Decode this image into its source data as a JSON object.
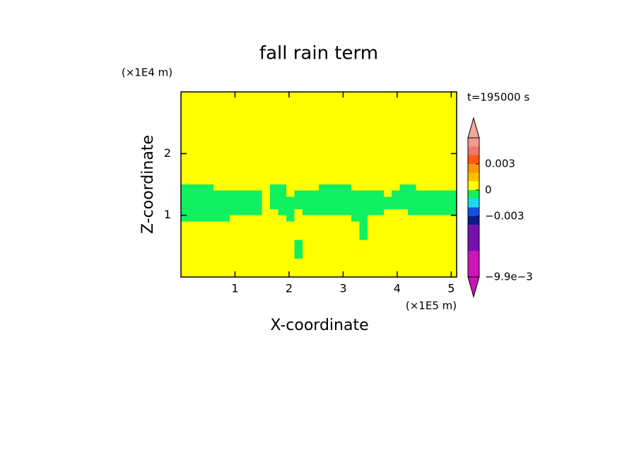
{
  "chart_data": {
    "type": "contour",
    "title": "fall rain term",
    "xlabel": "X-coordinate",
    "ylabel": "Z-coordinate",
    "xunit": "(×1E5 m)",
    "yunit": "(×1E4 m)",
    "annotation": "t=195000 s",
    "xlim": [
      0,
      5.1
    ],
    "ylim": [
      0,
      3
    ],
    "xticks": [
      1,
      2,
      3,
      4,
      5
    ],
    "yticks": [
      1,
      2
    ],
    "field": {
      "x_edges": [
        0,
        0.15,
        0.3,
        0.45,
        0.6,
        0.75,
        0.9,
        1.05,
        1.2,
        1.35,
        1.5,
        1.65,
        1.8,
        1.95,
        2.1,
        2.25,
        2.4,
        2.55,
        2.7,
        2.85,
        3,
        3.15,
        3.3,
        3.45,
        3.6,
        3.75,
        3.9,
        4.05,
        4.2,
        4.35,
        4.5,
        4.65,
        4.8,
        4.95,
        5.1
      ],
      "z_edges": [
        0,
        0.3,
        0.6,
        0.9,
        1,
        1.1,
        1.2,
        1.3,
        1.4,
        1.5,
        3
      ],
      "values": [
        [
          0,
          0,
          0,
          0,
          0,
          0,
          0,
          0,
          0,
          0,
          0,
          0,
          0,
          0,
          0,
          0,
          0,
          0,
          0,
          0,
          0,
          0,
          0,
          0,
          0,
          0,
          0,
          0,
          0,
          0,
          0,
          0,
          0,
          0
        ],
        [
          0,
          0,
          0,
          0,
          0,
          0,
          0,
          0,
          0,
          0,
          0,
          0,
          0,
          0,
          -0.0005,
          0,
          0,
          0,
          0,
          0,
          0,
          0,
          0,
          0,
          0,
          0,
          0,
          0,
          0,
          0,
          0,
          0,
          0,
          0
        ],
        [
          0,
          0,
          0,
          0,
          0,
          0,
          0,
          0,
          0,
          0,
          0,
          0,
          0,
          0,
          0,
          0,
          0,
          0,
          0,
          0,
          0,
          0,
          -0.0005,
          0,
          0,
          0,
          0,
          0,
          0,
          0,
          0,
          0,
          0,
          0
        ],
        [
          -0.0005,
          -0.0005,
          -0.0005,
          -0.0005,
          -0.0005,
          -0.0005,
          0,
          0,
          0,
          0,
          0,
          0,
          0,
          -0.0005,
          0,
          0,
          0,
          0,
          0,
          0,
          0,
          -0.0005,
          -0.0005,
          0,
          0,
          0,
          0,
          0,
          0,
          0,
          0,
          0,
          0,
          0
        ],
        [
          -0.0005,
          -0.0005,
          -0.0005,
          -0.0005,
          -0.0005,
          -0.0005,
          -0.0005,
          -0.0005,
          -0.0005,
          -0.0005,
          0,
          0,
          -0.0005,
          -0.0005,
          0,
          -0.0005,
          -0.0005,
          -0.0005,
          -0.0005,
          -0.0005,
          -0.0005,
          -0.0005,
          -0.0005,
          -0.0005,
          -0.0005,
          0,
          0,
          0,
          -0.0005,
          -0.0005,
          -0.0005,
          -0.0005,
          -0.0005,
          -0.0005
        ],
        [
          -0.0005,
          -0.0005,
          -0.0005,
          -0.0005,
          -0.0005,
          -0.0005,
          -0.0005,
          -0.0005,
          -0.0005,
          -0.0005,
          0,
          -0.0005,
          -0.0005,
          -0.0005,
          -0.0005,
          -0.0005,
          -0.0005,
          -0.0005,
          -0.0005,
          -0.0005,
          -0.0005,
          -0.0005,
          -0.0005,
          -0.0005,
          -0.0005,
          -0.0005,
          -0.0005,
          -0.0005,
          -0.0005,
          -0.0005,
          -0.0005,
          -0.0005,
          -0.0005,
          -0.0005
        ],
        [
          -0.0005,
          -0.0005,
          -0.0005,
          -0.0005,
          -0.0005,
          -0.0005,
          -0.0005,
          -0.0005,
          -0.0005,
          -0.0005,
          0,
          -0.0005,
          -0.0005,
          -0.0005,
          -0.0005,
          -0.0005,
          -0.0005,
          -0.0005,
          -0.0005,
          -0.0005,
          -0.0005,
          -0.0005,
          -0.0005,
          -0.0005,
          -0.0005,
          -0.0005,
          -0.0005,
          -0.0005,
          -0.0005,
          -0.0005,
          -0.0005,
          -0.0005,
          -0.0005,
          -0.0005
        ],
        [
          -0.0005,
          -0.0005,
          -0.0005,
          -0.0005,
          -0.0005,
          -0.0005,
          -0.0005,
          -0.0005,
          -0.0005,
          -0.0005,
          0,
          -0.0005,
          -0.0005,
          0,
          -0.0005,
          -0.0005,
          -0.0005,
          -0.0005,
          -0.0005,
          -0.0005,
          -0.0005,
          -0.0005,
          -0.0005,
          -0.0005,
          -0.0005,
          0,
          -0.0005,
          -0.0005,
          -0.0005,
          -0.0005,
          -0.0005,
          -0.0005,
          -0.0005,
          -0.0005
        ],
        [
          -0.0005,
          -0.0005,
          -0.0005,
          -0.0005,
          0,
          0,
          0,
          0,
          0,
          0,
          0,
          -0.0005,
          -0.0005,
          0,
          0,
          0,
          0,
          -0.0005,
          -0.0005,
          -0.0005,
          -0.0005,
          0,
          0,
          0,
          0,
          0,
          0,
          -0.0005,
          -0.0005,
          0,
          0,
          0,
          0,
          0
        ],
        [
          0,
          0,
          0,
          0,
          0,
          0,
          0,
          0,
          0,
          0,
          0,
          0,
          0,
          0,
          0,
          0,
          0,
          0,
          0,
          0,
          0,
          0,
          0,
          0,
          0,
          0,
          0,
          0,
          0,
          0,
          0,
          0,
          0,
          0
        ]
      ]
    },
    "colorbar": {
      "levels": [
        -0.0099,
        -0.009,
        -0.008,
        -0.007,
        -0.006,
        -0.005,
        -0.004,
        -0.003,
        -0.002,
        -0.001,
        0,
        0.001,
        0.002,
        0.003,
        0.004,
        0.005,
        0.006
      ],
      "colors": [
        "#cc14b8",
        "#cc14b8",
        "#cc14b8",
        "#7810b0",
        "#7810b0",
        "#7810b0",
        "#0c1a8c",
        "#1450e0",
        "#20d8f0",
        "#10f060",
        "#ffff00",
        "#ffc000",
        "#ff9800",
        "#ff5a10",
        "#f07868",
        "#f49a90"
      ],
      "extend_colors": [
        "#cc14b8",
        "#f4a8a0"
      ],
      "ticks": [
        {
          "value": 0.003,
          "label": "0.003"
        },
        0,
        {
          "value": -0.003,
          "label": "−0.003"
        },
        {
          "value": -0.0099,
          "label": "−9.9e−3"
        }
      ]
    }
  }
}
